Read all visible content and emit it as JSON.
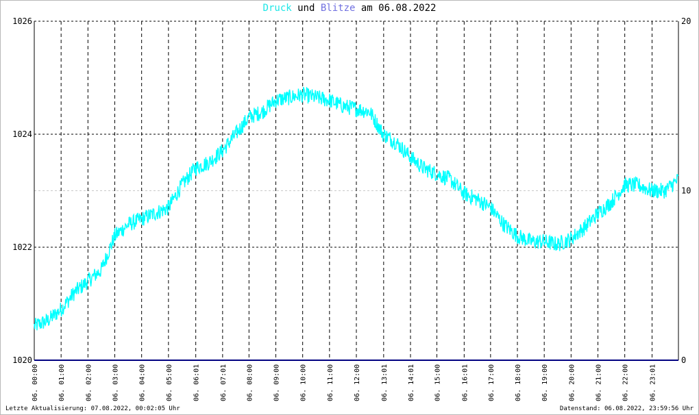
{
  "title": {
    "series1": "Druck",
    "mid": "und",
    "series2": "Blitze",
    "tail": "am 06.08.2022",
    "colors": {
      "series1": "#1ee6e6",
      "series2": "#7070e0",
      "text": "#000000"
    }
  },
  "footer": {
    "left": "Letzte Aktualisierung: 07.08.2022, 00:02:05 Uhr",
    "right": "Datenstand: 06.08.2022, 23:59:56 Uhr"
  },
  "chart_data": {
    "type": "line",
    "title": "Druck und Blitze am 06.08.2022",
    "x_unit": "hours",
    "xlim": [
      0,
      24
    ],
    "x_ticks": [
      0.0,
      1.0,
      2.0,
      3.0,
      4.0,
      5.0,
      6.017,
      7.017,
      8.0,
      9.0,
      10.0,
      11.0,
      12.0,
      13.017,
      14.017,
      15.0,
      16.017,
      17.0,
      18.0,
      19.0,
      20.0,
      21.0,
      22.0,
      23.017
    ],
    "x_tick_labels": [
      "06. 00:00",
      "06. 01:00",
      "06. 02:00",
      "06. 03:00",
      "06. 04:00",
      "06. 05:00",
      "06. 06:01",
      "06. 07:01",
      "06. 08:00",
      "06. 09:00",
      "06. 10:00",
      "06. 11:00",
      "06. 12:00",
      "06. 13:01",
      "06. 14:01",
      "06. 15:00",
      "06. 16:01",
      "06. 17:00",
      "06. 18:00",
      "06. 19:00",
      "06. 20:00",
      "06. 21:00",
      "06. 22:00",
      "06. 23:01"
    ],
    "y_left": {
      "lim": [
        1020,
        1026
      ],
      "ticks": [
        1020,
        1022,
        1024,
        1026
      ]
    },
    "y_right": {
      "lim": [
        0,
        20
      ],
      "ticks": [
        0,
        10,
        20
      ]
    },
    "grid": true,
    "series": [
      {
        "name": "Druck",
        "color": "#00ffff",
        "axis": "left",
        "x": [
          0.0,
          0.5,
          1.0,
          1.5,
          2.0,
          2.5,
          3.0,
          3.5,
          4.0,
          4.5,
          5.0,
          5.5,
          6.0,
          6.5,
          7.0,
          7.5,
          8.0,
          8.5,
          9.0,
          9.5,
          10.0,
          10.5,
          11.0,
          11.5,
          12.0,
          12.5,
          13.0,
          13.5,
          14.0,
          14.5,
          15.0,
          15.5,
          16.0,
          16.5,
          17.0,
          17.5,
          18.0,
          18.5,
          19.0,
          19.5,
          20.0,
          20.5,
          21.0,
          21.5,
          22.0,
          22.5,
          23.0,
          23.5,
          24.0
        ],
        "values": [
          1020.6,
          1020.7,
          1020.9,
          1021.2,
          1021.4,
          1021.6,
          1022.2,
          1022.4,
          1022.5,
          1022.6,
          1022.7,
          1023.1,
          1023.4,
          1023.5,
          1023.7,
          1024.0,
          1024.3,
          1024.4,
          1024.6,
          1024.65,
          1024.7,
          1024.65,
          1024.6,
          1024.5,
          1024.45,
          1024.4,
          1024.0,
          1023.85,
          1023.6,
          1023.4,
          1023.3,
          1023.2,
          1022.95,
          1022.85,
          1022.7,
          1022.4,
          1022.2,
          1022.1,
          1022.1,
          1022.05,
          1022.15,
          1022.35,
          1022.6,
          1022.8,
          1023.1,
          1023.1,
          1023.0,
          1023.0,
          1023.2
        ]
      },
      {
        "name": "Blitze",
        "color": "#000080",
        "axis": "right",
        "x": [
          0,
          24
        ],
        "values": [
          0,
          0
        ]
      }
    ]
  }
}
